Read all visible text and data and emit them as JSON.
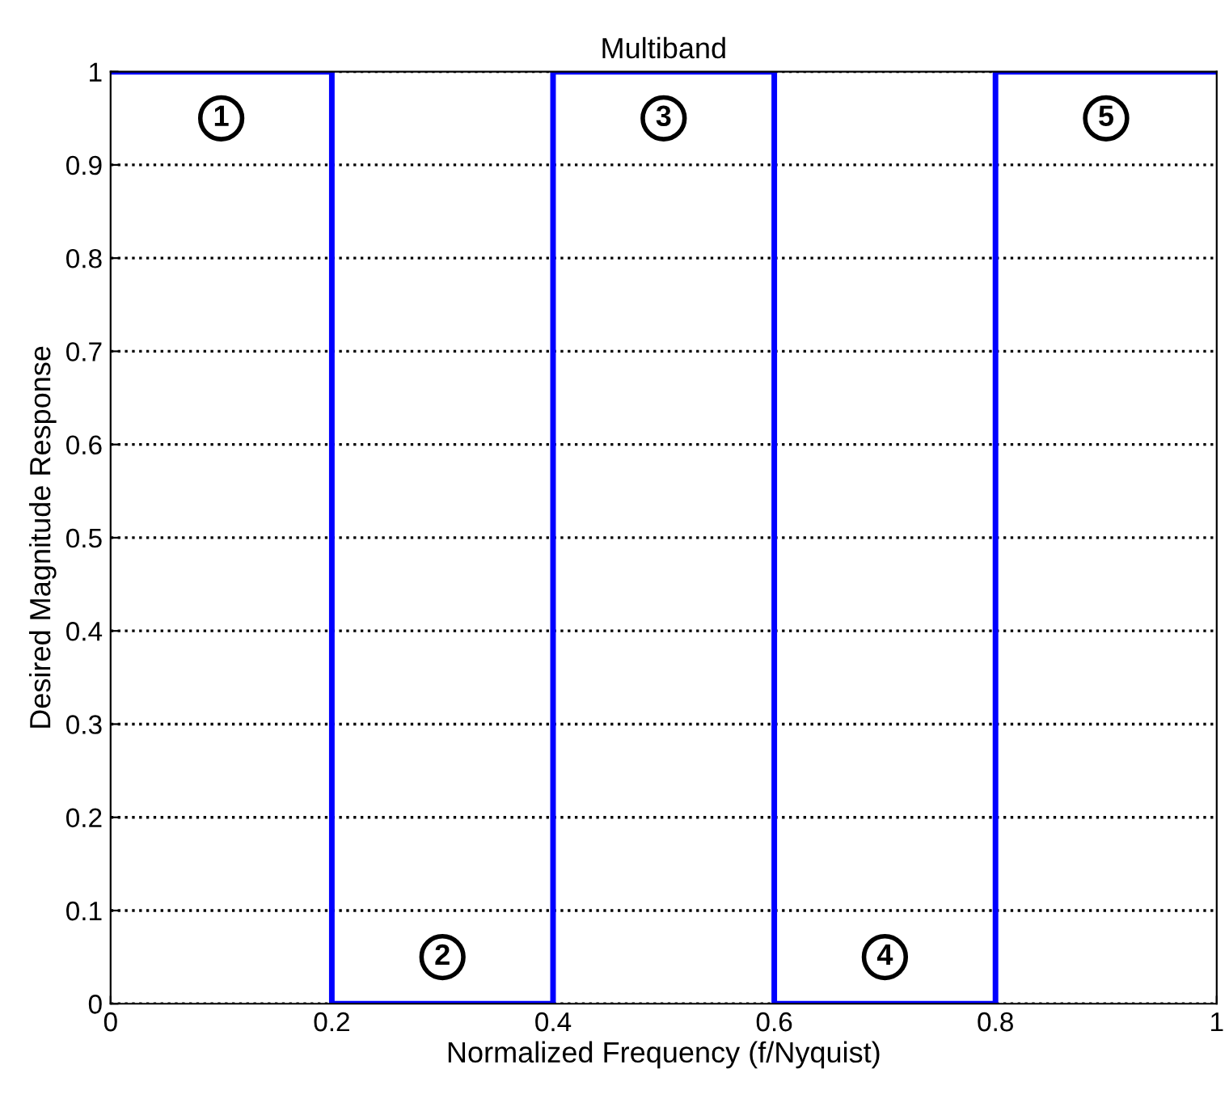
{
  "chart_data": {
    "type": "line",
    "title": "Multiband",
    "xlabel": "Normalized Frequency (f/Nyquist)",
    "ylabel": "Desired Magnitude Response",
    "series": [
      {
        "color": "#0000ff",
        "x": [
          0,
          0.2,
          0.2,
          0.4,
          0.4,
          0.6,
          0.6,
          0.8,
          0.8,
          1
        ],
        "values": [
          1,
          1,
          0,
          0,
          1,
          1,
          0,
          0,
          1,
          1
        ]
      }
    ],
    "xlim": [
      0,
      1
    ],
    "ylim": [
      0,
      1
    ],
    "xticks": [
      0,
      0.2,
      0.4,
      0.6,
      0.8,
      1
    ],
    "yticks": [
      0,
      0.1,
      0.2,
      0.3,
      0.4,
      0.5,
      0.6,
      0.7,
      0.8,
      0.9,
      1
    ],
    "grid": "y",
    "legend": false,
    "annotations": [
      {
        "text": "1",
        "x": 0.1,
        "y": 0.95
      },
      {
        "text": "2",
        "x": 0.3,
        "y": 0.05
      },
      {
        "text": "3",
        "x": 0.5,
        "y": 0.95
      },
      {
        "text": "4",
        "x": 0.7,
        "y": 0.05
      },
      {
        "text": "5",
        "x": 0.9,
        "y": 0.95
      }
    ]
  }
}
